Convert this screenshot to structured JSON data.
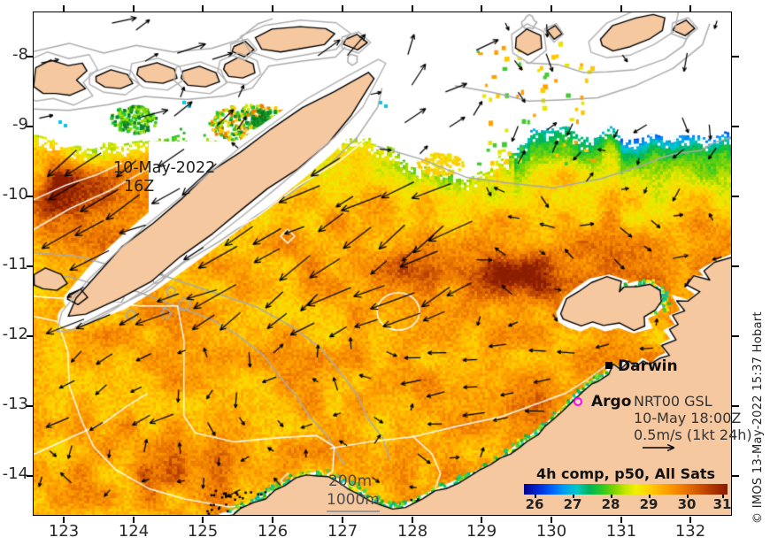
{
  "map_overlay": {
    "date_line1": "10-May-2022",
    "date_line2": "16Z",
    "depth_shallow": "200m",
    "depth_deep": "1000m"
  },
  "markers": {
    "city_label": "Darwin",
    "float_label": "Argo",
    "float_color": "#ff00ff"
  },
  "legend": {
    "product": "NRT00 GSL",
    "valid_time": "10-May 18:00Z",
    "vector_scale": "0.5m/s (1kt 24h)"
  },
  "colorbar": {
    "title": "4h comp, p50, All Sats",
    "tick_labels": [
      "26",
      "27",
      "28",
      "29",
      "30",
      "31"
    ],
    "min": 26,
    "max": 31,
    "gradient": [
      "#00008b",
      "#0064ff",
      "#00c8c8",
      "#28c828",
      "#c8e600",
      "#ffd200",
      "#ffa500",
      "#d75f00",
      "#8b1a00"
    ]
  },
  "axes": {
    "lat_labels": [
      "-8",
      "-9",
      "-10",
      "-11",
      "-12",
      "-13",
      "-14"
    ],
    "lon_labels": [
      "123",
      "124",
      "125",
      "126",
      "127",
      "128",
      "129",
      "130",
      "131",
      "132"
    ]
  },
  "attribution": "© IMOS 13-May-2022 15:37 Hobart",
  "colors": {
    "land": "#f6c8a0",
    "sea_warm": "#f08c00",
    "sea_hot": "#8b1a00",
    "no_data": "#ffffff"
  }
}
